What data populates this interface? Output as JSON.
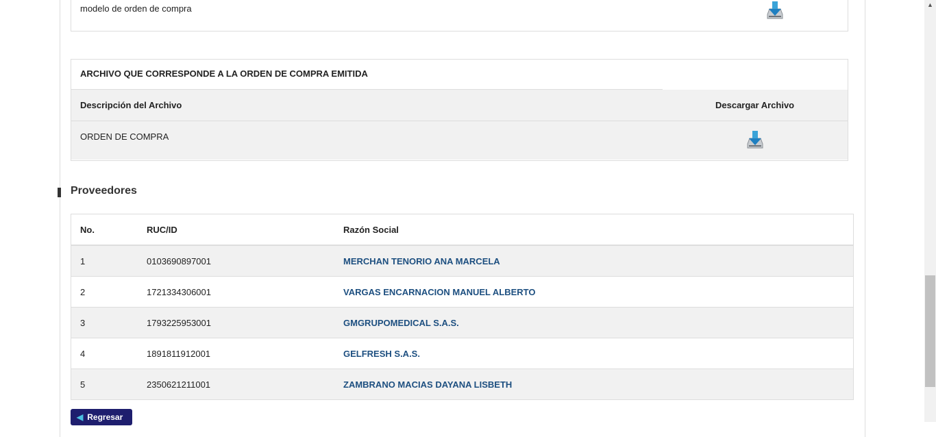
{
  "model_file": {
    "description": "modelo de orden de compra",
    "icon": "download-drive-icon"
  },
  "issued_file": {
    "title": "ARCHIVO QUE CORRESPONDE A LA ORDEN DE COMPRA EMITIDA",
    "col_desc": "Descripción del Archivo",
    "col_download": "Descargar Archivo",
    "rows": [
      {
        "description": "ORDEN DE COMPRA"
      }
    ]
  },
  "providers": {
    "title": "Proveedores",
    "headers": [
      "No.",
      "RUC/ID",
      "Razón Social"
    ],
    "rows": [
      {
        "no": "1",
        "ruc": "0103690897001",
        "name": "MERCHAN TENORIO ANA MARCELA"
      },
      {
        "no": "2",
        "ruc": "1721334306001",
        "name": "VARGAS ENCARNACION MANUEL ALBERTO"
      },
      {
        "no": "3",
        "ruc": "1793225953001",
        "name": "GMGRUPOMEDICAL S.A.S."
      },
      {
        "no": "4",
        "ruc": "1891811912001",
        "name": "GELFRESH S.A.S."
      },
      {
        "no": "5",
        "ruc": "2350621211001",
        "name": "ZAMBRANO MACIAS DAYANA LISBETH"
      }
    ]
  },
  "back_button": "Regresar",
  "colors": {
    "link": "#1d4f80",
    "button": "#1e1e6e"
  }
}
